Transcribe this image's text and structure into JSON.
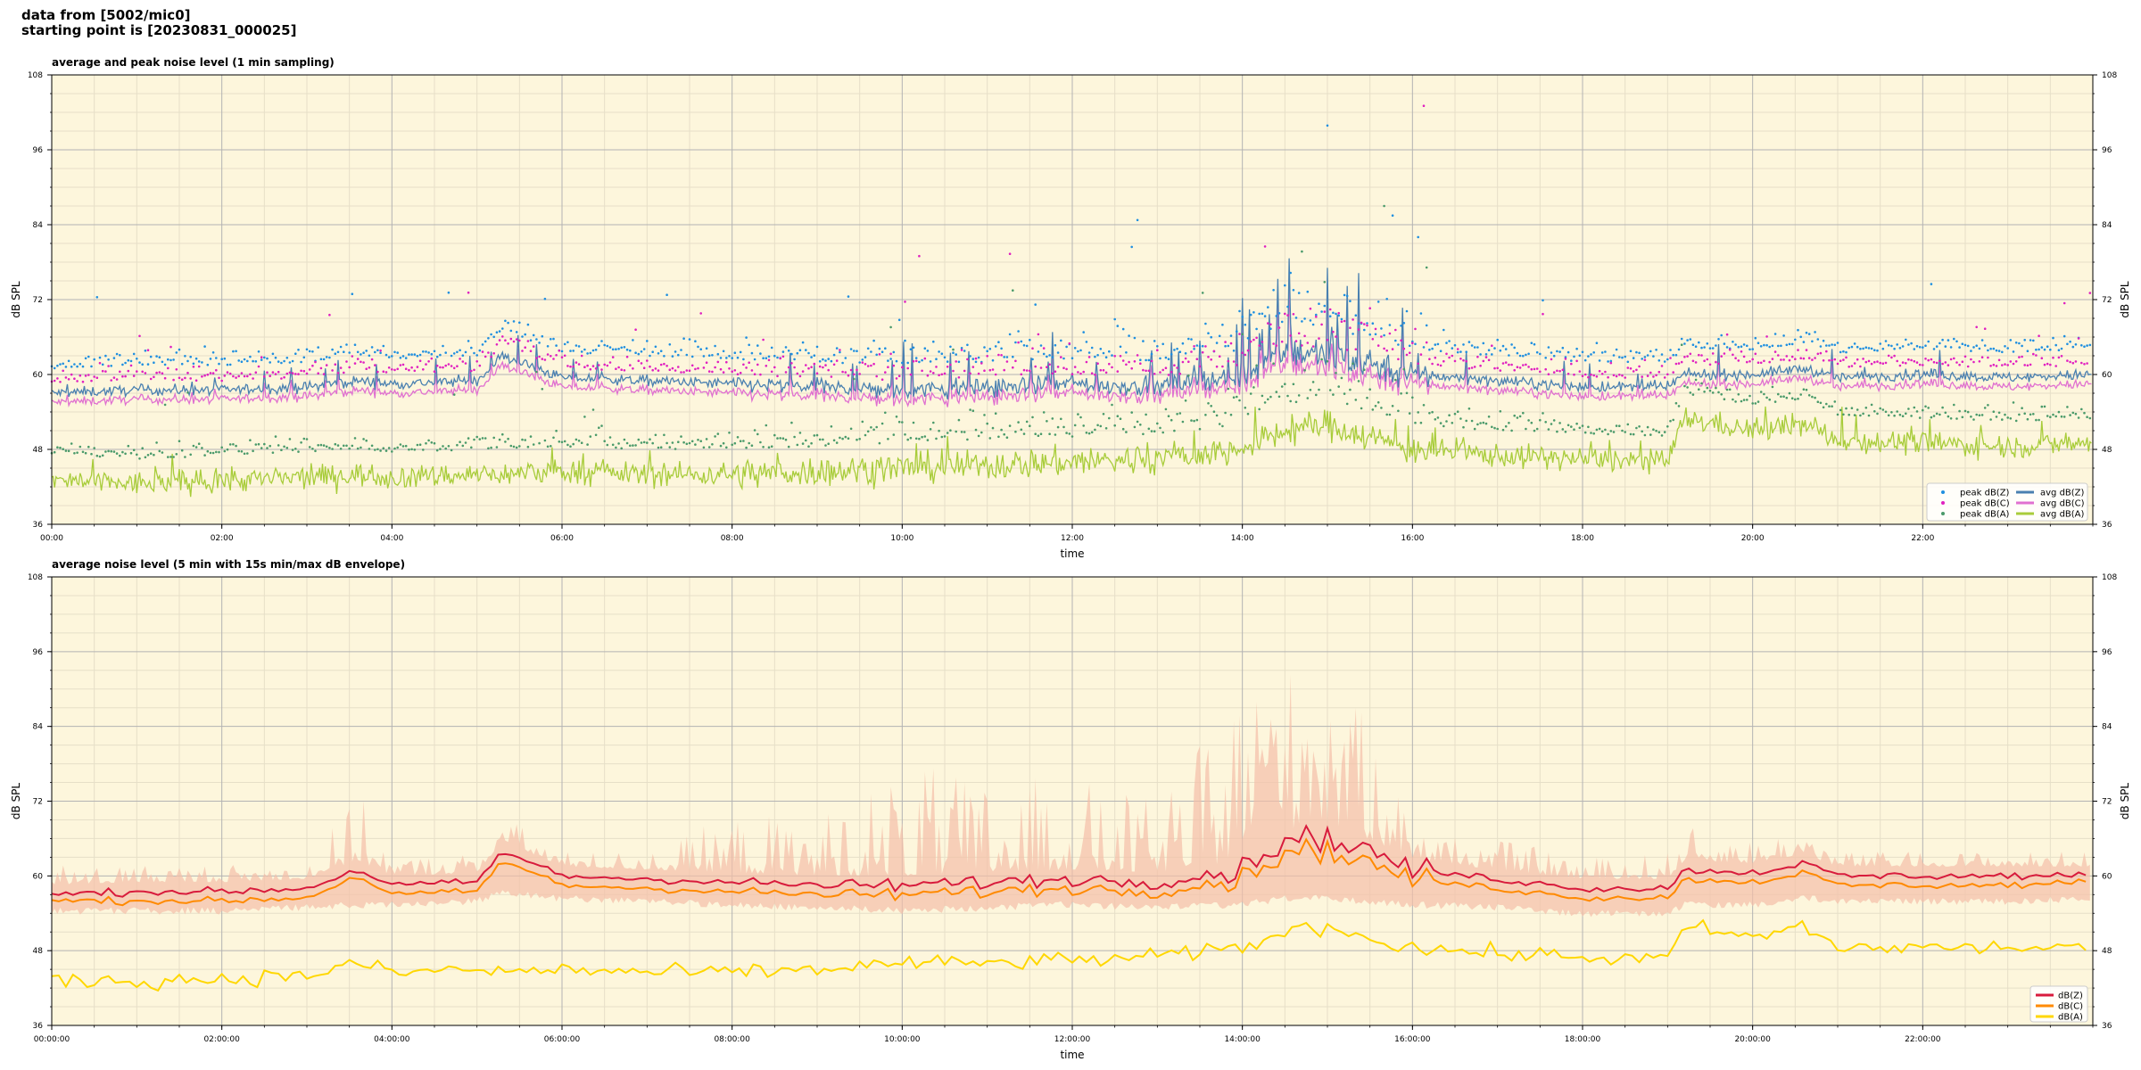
{
  "header": {
    "line1": "data from [5002/mic0]",
    "line2": "starting point is [20230831_000025]"
  },
  "colors": {
    "background": "#fdf6dc",
    "grid_major": "#b3b3b3",
    "grid_minor": "#e6dfc8",
    "peak_z": "#1f8fe0",
    "peak_c": "#e020c0",
    "peak_a": "#4a9a6a",
    "avg_z": "#4a80b0",
    "avg_c": "#e070d0",
    "avg_a": "#a8cc3a",
    "db_z": "#d81b3c",
    "db_c": "#ff8a00",
    "db_a": "#ffd700",
    "envelope": "#f4bfa8"
  },
  "chart_data": [
    {
      "type": "line",
      "title": "average and peak noise level (1 min sampling)",
      "xlabel": "time",
      "ylabel": "dB SPL",
      "ylabel_right": "dB SPL",
      "ylim": [
        36,
        108
      ],
      "yticks": [
        "36",
        "48",
        "60",
        "72",
        "84",
        "96",
        "108"
      ],
      "xticks": [
        "00:00",
        "02:00",
        "04:00",
        "06:00",
        "08:00",
        "10:00",
        "12:00",
        "14:00",
        "16:00",
        "18:00",
        "20:00",
        "22:00"
      ],
      "xrange_hours": [
        0,
        24
      ],
      "grid": true,
      "legend_position": "lower-right",
      "legend": [
        "peak dB(Z)",
        "peak dB(C)",
        "peak dB(A)",
        "avg dB(Z)",
        "avg dB(C)",
        "avg dB(A)"
      ],
      "level_profile": {
        "x_hours": [
          0,
          1,
          2,
          3,
          3.6,
          4,
          5,
          5.3,
          6,
          7,
          8,
          9,
          10,
          11,
          12,
          13,
          14,
          14.5,
          15,
          15.5,
          16,
          17,
          18,
          19,
          19.2,
          20,
          20.6,
          21,
          22,
          23,
          24
        ],
        "avg_dBZ": [
          57,
          57.5,
          57.5,
          58,
          59,
          58.5,
          59,
          63,
          59.5,
          59,
          58.5,
          58,
          57.5,
          58,
          58.5,
          58,
          60,
          64,
          63,
          62,
          60,
          59,
          58,
          58,
          60,
          60,
          61,
          59.5,
          60,
          59.5,
          60
        ],
        "avg_dBC": [
          55.5,
          56,
          56,
          56.5,
          57.5,
          57,
          57.5,
          61.5,
          58,
          57.5,
          57,
          56.5,
          56,
          56.5,
          57,
          56.5,
          58.5,
          62,
          61,
          60,
          58.5,
          57.5,
          56.5,
          56.5,
          58.5,
          58.5,
          59.5,
          58,
          58.5,
          58,
          58.5
        ],
        "avg_dBA": [
          43,
          42.5,
          43,
          43.5,
          44,
          43.5,
          44,
          44,
          44.5,
          44,
          44,
          44.5,
          45,
          45.5,
          46,
          46.5,
          48,
          51,
          52,
          50,
          48,
          47,
          46.5,
          46,
          53,
          51,
          52,
          49.5,
          49,
          48.5,
          49
        ]
      }
    },
    {
      "type": "line",
      "title": "average noise level (5 min with 15s min/max dB envelope)",
      "xlabel": "time",
      "ylabel": "dB SPL",
      "ylabel_right": "dB SPL",
      "ylim": [
        36,
        108
      ],
      "yticks": [
        "36",
        "48",
        "60",
        "72",
        "84",
        "96",
        "108"
      ],
      "xticks": [
        "00:00:00",
        "02:00:00",
        "04:00:00",
        "06:00:00",
        "08:00:00",
        "10:00:00",
        "12:00:00",
        "14:00:00",
        "16:00:00",
        "18:00:00",
        "20:00:00",
        "22:00:00"
      ],
      "xrange_hours": [
        0,
        24
      ],
      "grid": true,
      "legend_position": "lower-right",
      "legend": [
        "dB(Z)",
        "dB(C)",
        "dB(A)"
      ],
      "level_profile": {
        "x_hours": [
          0,
          1,
          2,
          3,
          3.6,
          4,
          5,
          5.3,
          6,
          7,
          8,
          9,
          10,
          11,
          12,
          13,
          14,
          14.5,
          15,
          15.5,
          16,
          17,
          18,
          19,
          19.2,
          20,
          20.6,
          21,
          22,
          23,
          24
        ],
        "dBZ": [
          57,
          57.5,
          57.5,
          58,
          61,
          58.5,
          59,
          64,
          60,
          59.5,
          59,
          58.5,
          58.5,
          59,
          59.5,
          59,
          61,
          66,
          66,
          64,
          61,
          59.5,
          58,
          58,
          61,
          60.5,
          62,
          60,
          60,
          60,
          60
        ],
        "dBC": [
          56,
          56,
          56,
          56.5,
          60,
          57,
          57.5,
          62.5,
          58.5,
          58,
          57.5,
          57,
          57,
          57.5,
          58,
          57.5,
          59.5,
          64,
          64,
          62,
          59.5,
          58,
          56.5,
          56.5,
          59.5,
          59,
          60.5,
          58.5,
          58.5,
          58.5,
          59
        ],
        "dBA": [
          43.5,
          43,
          43.5,
          44,
          46,
          44.5,
          45,
          44.5,
          45,
          44.5,
          44.5,
          45,
          46,
          46,
          46.5,
          47,
          48.5,
          51,
          52,
          50,
          48.5,
          47.5,
          47,
          46.5,
          52,
          50,
          52,
          48.5,
          48.5,
          48.5,
          48.5
        ],
        "envelope_max": [
          62,
          62,
          62,
          62,
          74,
          63,
          64,
          70,
          64,
          64,
          70,
          70,
          78,
          76,
          76,
          72,
          90,
          94,
          92,
          85,
          68,
          66,
          63,
          64,
          68,
          66,
          68,
          64,
          64,
          64,
          64
        ],
        "envelope_min": [
          55,
          55,
          55,
          55.5,
          56,
          56,
          56.5,
          58,
          57,
          56.5,
          56,
          55.5,
          55,
          55.5,
          56,
          55.5,
          56,
          57,
          57,
          56.5,
          56,
          55.5,
          54.5,
          54.5,
          56,
          56,
          57,
          56.5,
          56.5,
          56.5,
          57
        ]
      }
    }
  ]
}
